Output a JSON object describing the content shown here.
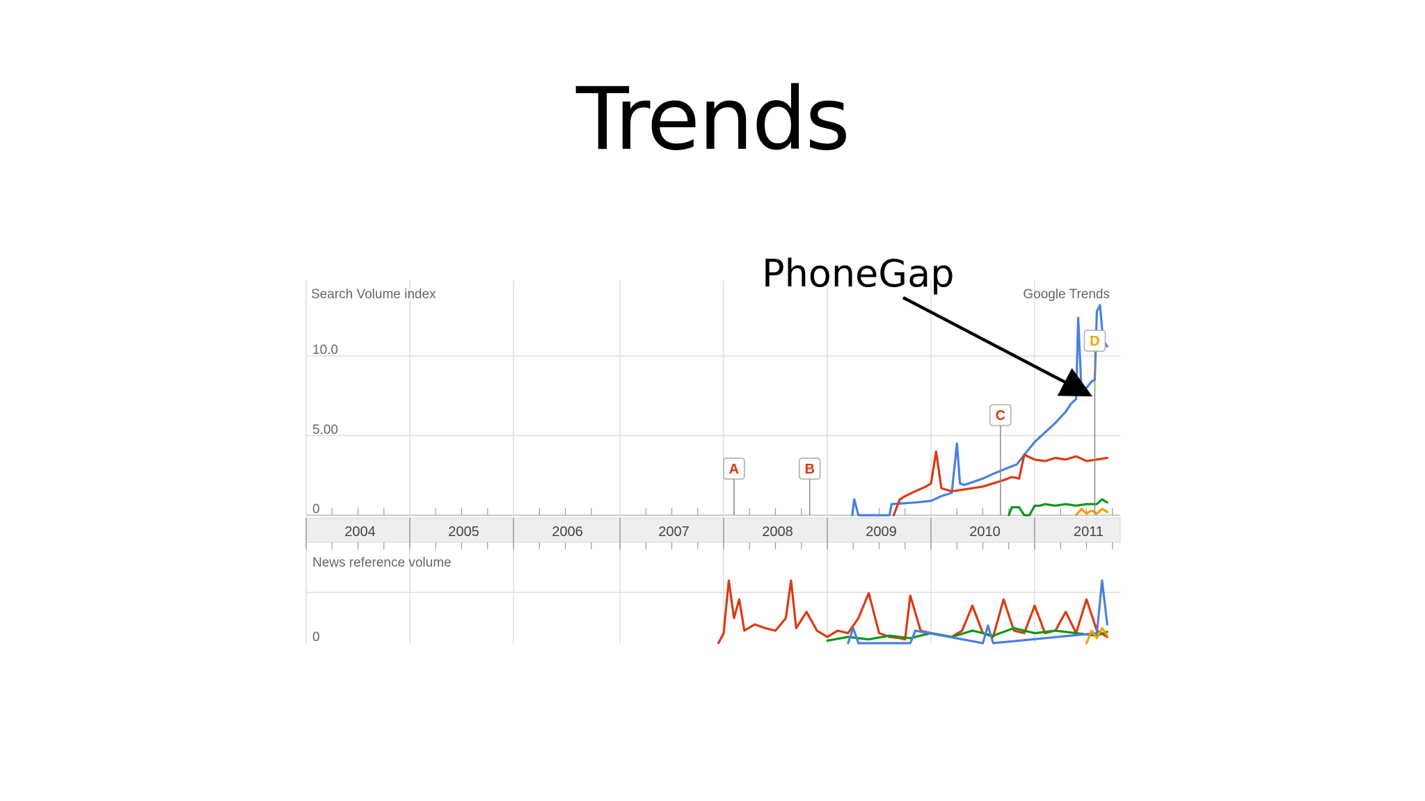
{
  "slide": {
    "title": "Trends"
  },
  "chart_data": {
    "type": "line",
    "source_label": "Google Trends",
    "annotation": "PhoneGap",
    "top_panel": {
      "ylabel": "Search Volume index",
      "y_ticks": [
        "0",
        "5.00",
        "10.0"
      ],
      "ylim": [
        0,
        13
      ]
    },
    "bottom_panel": {
      "ylabel": "News reference volume",
      "y_ticks": [
        "0"
      ]
    },
    "x_tick_labels": [
      "2004",
      "2005",
      "2006",
      "2007",
      "2008",
      "2009",
      "2010",
      "2011"
    ],
    "xlim": [
      2004.0,
      2011.75
    ],
    "event_markers": [
      {
        "label": "A",
        "x": 2008.1,
        "color": "#dc3912"
      },
      {
        "label": "B",
        "x": 2008.83,
        "color": "#dc3912"
      },
      {
        "label": "C",
        "x": 2010.67,
        "color": "#dc3912"
      },
      {
        "label": "D",
        "x": 2011.58,
        "color": "#f4a300"
      }
    ],
    "search_series": [
      {
        "color": "#4a7fe0",
        "x": [
          2009.24,
          2009.26,
          2009.3,
          2009.5,
          2009.6,
          2009.62,
          2009.85,
          2010.0,
          2010.1,
          2010.2,
          2010.25,
          2010.28,
          2010.32,
          2010.5,
          2010.6,
          2010.75,
          2010.83,
          2010.9,
          2011.0,
          2011.1,
          2011.2,
          2011.3,
          2011.35,
          2011.4,
          2011.42,
          2011.45,
          2011.5,
          2011.55,
          2011.58,
          2011.6,
          2011.63,
          2011.66,
          2011.7
        ],
        "y": [
          0.0,
          1.0,
          0.0,
          0.0,
          0.0,
          0.7,
          0.8,
          0.9,
          1.2,
          1.4,
          4.5,
          2.0,
          1.9,
          2.3,
          2.6,
          3.0,
          3.2,
          3.8,
          4.6,
          5.2,
          5.8,
          6.5,
          7.0,
          7.3,
          12.4,
          8.0,
          8.0,
          8.4,
          8.5,
          12.8,
          13.2,
          11.0,
          10.6
        ]
      },
      {
        "color": "#dc3912",
        "x": [
          2009.64,
          2009.7,
          2009.75,
          2009.85,
          2009.95,
          2010.0,
          2010.05,
          2010.1,
          2010.2,
          2010.3,
          2010.5,
          2010.6,
          2010.7,
          2010.78,
          2010.85,
          2010.9,
          2011.0,
          2011.1,
          2011.2,
          2011.3,
          2011.4,
          2011.5,
          2011.6,
          2011.7
        ],
        "y": [
          0.0,
          1.0,
          1.2,
          1.5,
          1.8,
          2.0,
          4.0,
          1.7,
          1.5,
          1.6,
          1.8,
          2.0,
          2.2,
          2.4,
          2.3,
          3.8,
          3.5,
          3.4,
          3.6,
          3.5,
          3.7,
          3.4,
          3.5,
          3.6
        ]
      },
      {
        "color": "#109618",
        "x": [
          2010.75,
          2010.78,
          2010.85,
          2010.9,
          2010.95,
          2011.0,
          2011.05,
          2011.1,
          2011.2,
          2011.3,
          2011.4,
          2011.5,
          2011.6,
          2011.65,
          2011.7
        ],
        "y": [
          0.0,
          0.5,
          0.5,
          0.0,
          0.0,
          0.6,
          0.6,
          0.7,
          0.6,
          0.7,
          0.6,
          0.7,
          0.7,
          1.0,
          0.8
        ]
      },
      {
        "color": "#ff9900",
        "x": [
          2011.4,
          2011.45,
          2011.5,
          2011.55,
          2011.6,
          2011.65,
          2011.7
        ],
        "y": [
          0.0,
          0.4,
          0.1,
          0.3,
          0.1,
          0.4,
          0.2
        ]
      }
    ],
    "news_series": [
      {
        "color": "#dc3912",
        "x": [
          2007.95,
          2008.0,
          2008.05,
          2008.1,
          2008.15,
          2008.2,
          2008.3,
          2008.4,
          2008.5,
          2008.6,
          2008.65,
          2008.7,
          2008.8,
          2008.9,
          2009.0,
          2009.1,
          2009.2,
          2009.3,
          2009.4,
          2009.5,
          2009.6,
          2009.7,
          2009.75,
          2009.8,
          2009.9,
          2010.0,
          2010.2,
          2010.3,
          2010.4,
          2010.5,
          2010.6,
          2010.7,
          2010.8,
          2010.9,
          2011.0,
          2011.1,
          2011.2,
          2011.3,
          2011.4,
          2011.5,
          2011.6,
          2011.7
        ],
        "y": [
          0,
          8,
          50,
          20,
          35,
          10,
          15,
          12,
          10,
          20,
          50,
          12,
          25,
          10,
          5,
          10,
          8,
          20,
          40,
          8,
          5,
          4,
          3,
          38,
          10,
          8,
          5,
          10,
          30,
          8,
          5,
          35,
          10,
          8,
          30,
          8,
          10,
          25,
          8,
          35,
          10,
          5
        ]
      },
      {
        "color": "#109618",
        "x": [
          2009.0,
          2009.2,
          2009.4,
          2009.6,
          2009.8,
          2010.0,
          2010.2,
          2010.4,
          2010.6,
          2010.8,
          2011.0,
          2011.2,
          2011.4,
          2011.6,
          2011.7
        ],
        "y": [
          2,
          5,
          3,
          6,
          4,
          8,
          5,
          10,
          6,
          12,
          8,
          10,
          8,
          6,
          9
        ]
      },
      {
        "color": "#4a7fe0",
        "x": [
          2009.2,
          2009.25,
          2009.3,
          2009.8,
          2009.85,
          2010.5,
          2010.55,
          2010.6,
          2011.6,
          2011.65,
          2011.7
        ],
        "y": [
          0,
          12,
          0,
          0,
          10,
          0,
          14,
          0,
          8,
          50,
          15
        ]
      },
      {
        "color": "#ff9900",
        "x": [
          2011.5,
          2011.55,
          2011.6,
          2011.65,
          2011.7
        ],
        "y": [
          0,
          10,
          4,
          12,
          6
        ]
      }
    ]
  }
}
